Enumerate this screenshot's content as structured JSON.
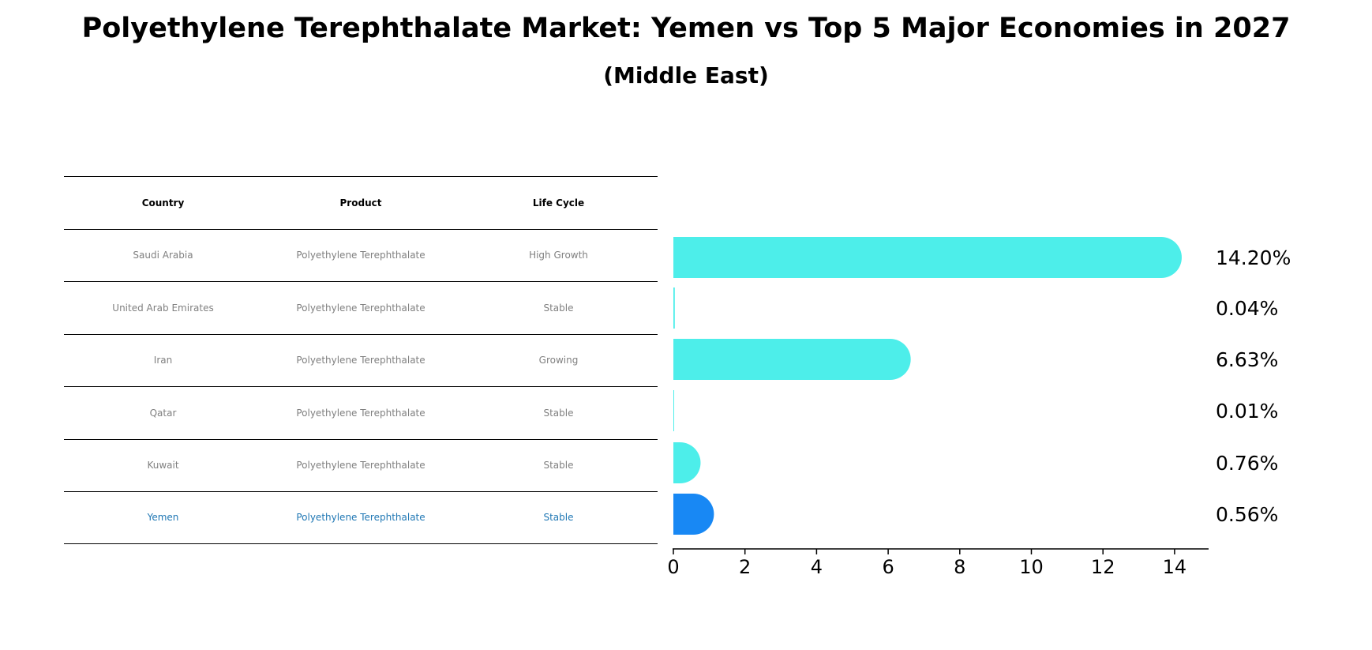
{
  "title": "Polyethylene Terephthalate Market: Yemen vs Top 5 Major Economies in 2027",
  "subtitle": "(Middle East)",
  "table": {
    "headers": [
      "Country",
      "Product",
      "Life Cycle"
    ],
    "rows": [
      [
        "Saudi Arabia",
        "Polyethylene Terephthalate",
        "High Growth"
      ],
      [
        "United Arab Emirates",
        "Polyethylene Terephthalate",
        "Stable"
      ],
      [
        "Iran",
        "Polyethylene Terephthalate",
        "Growing"
      ],
      [
        "Qatar",
        "Polyethylene Terephthalate",
        "Stable"
      ],
      [
        "Kuwait",
        "Polyethylene Terephthalate",
        "Stable"
      ],
      [
        "Yemen",
        "Polyethylene Terephthalate",
        "Stable"
      ]
    ],
    "highlight_row": 5,
    "highlight_color": "#1f77b4"
  },
  "chart_data": {
    "type": "bar",
    "orientation": "horizontal",
    "categories": [
      "Saudi Arabia",
      "United Arab Emirates",
      "Iran",
      "Qatar",
      "Kuwait",
      "Yemen"
    ],
    "values": [
      14.2,
      0.04,
      6.63,
      0.01,
      0.76,
      0.56
    ],
    "value_labels": [
      "14.20%",
      "0.04%",
      "6.63%",
      "0.01%",
      "0.76%",
      "0.56%"
    ],
    "xlim": [
      0,
      15
    ],
    "xticks": [
      0,
      2,
      4,
      6,
      8,
      10,
      12,
      14
    ],
    "bar_color": "#4deeea",
    "highlight_color": "#1888f4",
    "highlight_index": 5,
    "grid": false,
    "legend": "none"
  }
}
